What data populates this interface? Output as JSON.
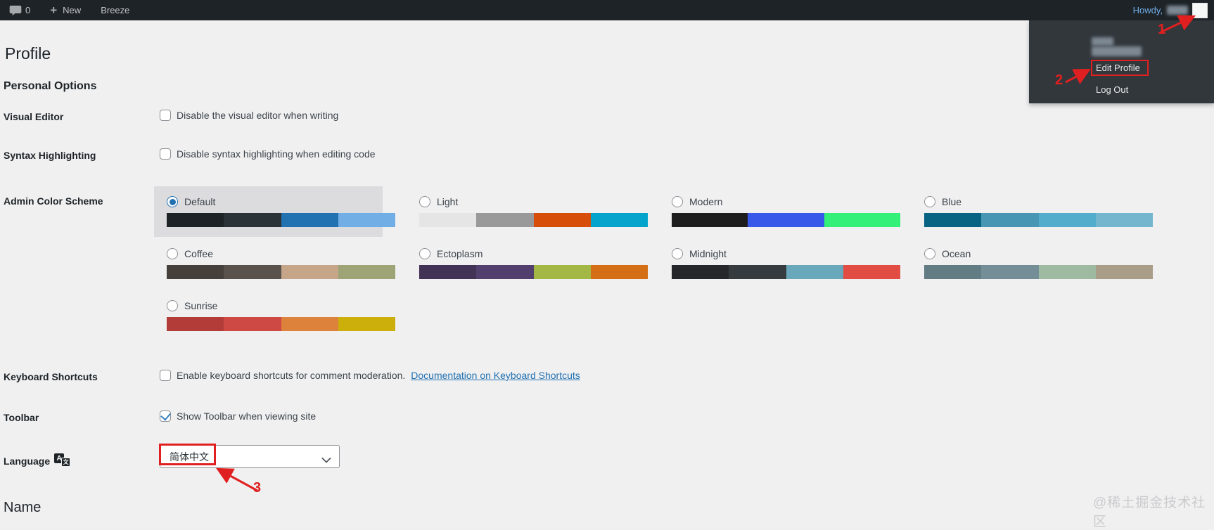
{
  "admin_bar": {
    "comment_count": "0",
    "new_label": "New",
    "site_label": "Breeze",
    "howdy_label": "Howdy,"
  },
  "user_menu": {
    "edit_profile_label": "Edit Profile",
    "log_out_label": "Log Out"
  },
  "annotations": {
    "step1": "1",
    "step2": "2",
    "step3": "3"
  },
  "page": {
    "title": "Profile",
    "personal_options_heading": "Personal Options",
    "name_heading": "Name"
  },
  "fields": {
    "visual_editor": {
      "label": "Visual Editor",
      "option": "Disable the visual editor when writing",
      "checked": false
    },
    "syntax_highlighting": {
      "label": "Syntax Highlighting",
      "option": "Disable syntax highlighting when editing code",
      "checked": false
    },
    "admin_color_scheme": {
      "label": "Admin Color Scheme"
    },
    "keyboard_shortcuts": {
      "label": "Keyboard Shortcuts",
      "option": "Enable keyboard shortcuts for comment moderation.",
      "link": "Documentation on Keyboard Shortcuts",
      "checked": false
    },
    "toolbar": {
      "label": "Toolbar",
      "option": "Show Toolbar when viewing site",
      "checked": true
    },
    "language": {
      "label": "Language",
      "selected_value": "简体中文"
    }
  },
  "color_schemes": [
    {
      "name": "Default",
      "selected": true,
      "colors": [
        "#1d2327",
        "#2c3338",
        "#2271b1",
        "#72aee6"
      ]
    },
    {
      "name": "Light",
      "selected": false,
      "colors": [
        "#e5e5e5",
        "#999999",
        "#d64e07",
        "#04a4cc"
      ]
    },
    {
      "name": "Modern",
      "selected": false,
      "colors": [
        "#1e1e1e",
        "#3858e9",
        "#33f078"
      ]
    },
    {
      "name": "Blue",
      "selected": false,
      "colors": [
        "#096484",
        "#4796b3",
        "#52accc",
        "#74b6ce"
      ]
    },
    {
      "name": "Coffee",
      "selected": false,
      "colors": [
        "#46403c",
        "#59524c",
        "#c7a589",
        "#9ea476"
      ]
    },
    {
      "name": "Ectoplasm",
      "selected": false,
      "colors": [
        "#413256",
        "#523f6d",
        "#a3b745",
        "#d46f15"
      ]
    },
    {
      "name": "Midnight",
      "selected": false,
      "colors": [
        "#25282b",
        "#363b3f",
        "#69a8bb",
        "#e14d43"
      ]
    },
    {
      "name": "Ocean",
      "selected": false,
      "colors": [
        "#627c83",
        "#738e96",
        "#9ebaa0",
        "#aa9d88"
      ]
    },
    {
      "name": "Sunrise",
      "selected": false,
      "colors": [
        "#b43c38",
        "#cf4944",
        "#dd823b",
        "#ccaf0b"
      ]
    }
  ],
  "watermark": "@稀土掘金技术社区",
  "theme": {
    "admin_bar_bg": "#1d2327",
    "panel_bg": "#32373c",
    "page_bg": "#f0f0f1",
    "accent_blue": "#3582c4",
    "link_color": "#2271b1",
    "annotation_red": "#e02020",
    "howdy_color": "#72aee6",
    "selected_scheme_bg": "#dcdcde"
  }
}
